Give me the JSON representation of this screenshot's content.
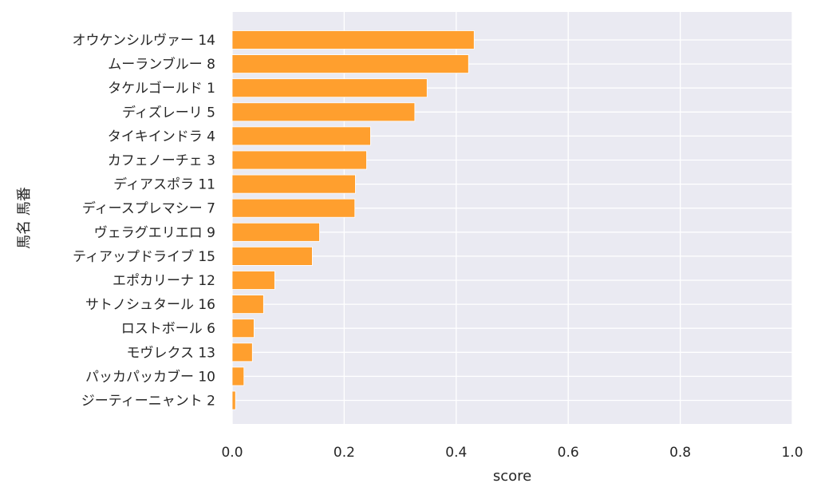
{
  "chart_data": {
    "type": "bar",
    "orientation": "horizontal",
    "title": "",
    "xlabel": "score",
    "ylabel": "馬名 馬番",
    "xlim": [
      0,
      1.0
    ],
    "xticks": [
      "0.0",
      "0.2",
      "0.4",
      "0.6",
      "0.8",
      "1.0"
    ],
    "grid": true,
    "legend": "none",
    "bar_color": "#ff9f2e",
    "background": "#eaeaf2",
    "categories": [
      "オウケンシルヴァー 14",
      "ムーランブルー 8",
      "タケルゴールド 1",
      "ディズレーリ 5",
      "タイキインドラ 4",
      "カフェノーチェ 3",
      "ディアスポラ 11",
      "ディースプレマシー 7",
      "ヴェラグエリエロ 9",
      "ティアップドライブ 15",
      "エポカリーナ 12",
      "サトノシュタール 16",
      "ロストボール 6",
      "モヴレクス 13",
      "パッカパッカブー 10",
      "ジーティーニャント 2"
    ],
    "values": [
      0.432,
      0.422,
      0.348,
      0.326,
      0.247,
      0.24,
      0.22,
      0.219,
      0.156,
      0.143,
      0.076,
      0.056,
      0.039,
      0.036,
      0.021,
      0.006
    ]
  }
}
